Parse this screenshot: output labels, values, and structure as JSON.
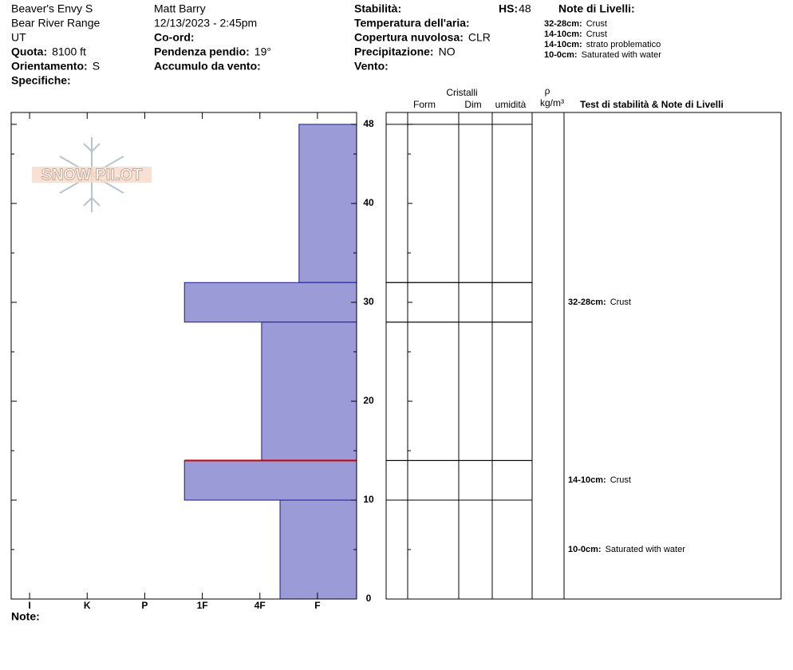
{
  "header": {
    "col1": [
      {
        "text": "Beaver's Envy S"
      },
      {
        "text": "Bear River Range"
      },
      {
        "text": "UT"
      },
      {
        "label": "Quota:",
        "value": "8100 ft"
      },
      {
        "label": "Orientamento:",
        "value": "S"
      },
      {
        "label": "Specifiche:"
      }
    ],
    "col2": [
      {
        "text": "Matt Barry"
      },
      {
        "text": "12/13/2023 - 2:45pm"
      },
      {
        "label": "Co-ord:"
      },
      {
        "label": "Pendenza pendio:",
        "value": "19°"
      },
      {
        "label": "Accumulo da vento:"
      }
    ],
    "col3": [
      {
        "label": "Stabilità:"
      },
      {
        "label": "Temperatura dell'aria:"
      },
      {
        "label": "Copertura nuvolosa:",
        "value": "CLR"
      },
      {
        "label": "Precipitazione:",
        "value": "NO"
      },
      {
        "label": "Vento:"
      }
    ],
    "hs": {
      "label": "HS:",
      "value": 48
    },
    "notes_title": "Note di Livelli:",
    "notes": [
      {
        "range": "32-28cm:",
        "text": "Crust"
      },
      {
        "range": "14-10cm:",
        "text": "Crust"
      },
      {
        "range": "14-10cm:",
        "text": "strato problematico"
      },
      {
        "range": "10-0cm:",
        "text": "Saturated with water"
      }
    ]
  },
  "logo": "SNOW PILOT",
  "note_label": "Note:",
  "chart_data": {
    "type": "snow-profile",
    "ylim": [
      0,
      49.2
    ],
    "yticks": [
      0,
      10,
      20,
      30,
      40,
      48
    ],
    "yminorticks": [
      5,
      15,
      25,
      35,
      45
    ],
    "xlim": [
      -0.32,
      5.68
    ],
    "xticks": [
      {
        "value": 0,
        "label": "I"
      },
      {
        "value": 1,
        "label": "K"
      },
      {
        "value": 2,
        "label": "P"
      },
      {
        "value": 3,
        "label": "1F"
      },
      {
        "value": 4,
        "label": "4F"
      },
      {
        "value": 5,
        "label": "F"
      }
    ],
    "color": "#9b9bd8",
    "edge_color": "#1a1a8c",
    "layers": [
      {
        "top": 48,
        "bottom": 32,
        "hardness": 4.68
      },
      {
        "top": 32,
        "bottom": 28,
        "hardness": 2.69
      },
      {
        "top": 28,
        "bottom": 14,
        "hardness": 4.03
      },
      {
        "top": 14,
        "bottom": 10,
        "hardness": 2.69
      },
      {
        "top": 10,
        "bottom": 0,
        "hardness": 4.35
      }
    ],
    "problem_depth": 14,
    "problem_color": "#cc0000",
    "crystals_title": "Cristalli",
    "columns": [
      "Form",
      "Dim",
      "umidità"
    ],
    "density_symbol": "ρ",
    "density_unit": "kg/m³",
    "notes_column_title": "Test di stabilità & Note di Livelli",
    "layer_notes": [
      {
        "top": 32,
        "bottom": 28,
        "label": "32-28cm:",
        "text": "Crust"
      },
      {
        "top": 14,
        "bottom": 10,
        "label": "14-10cm:",
        "text": "Crust"
      },
      {
        "top": 10,
        "bottom": 0,
        "label": "10-0cm:",
        "text": "Saturated with water"
      }
    ]
  }
}
